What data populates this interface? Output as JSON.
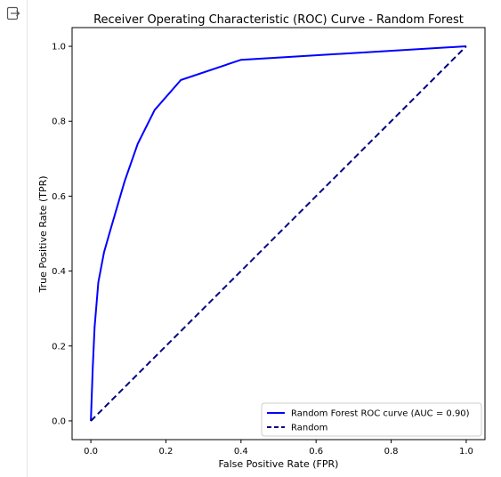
{
  "cell": {
    "output_icon": "output-expand-icon"
  },
  "chart_data": {
    "type": "line",
    "title": "Receiver Operating Characteristic (ROC) Curve - Random Forest",
    "xlabel": "False Positive Rate (FPR)",
    "ylabel": "True Positive Rate (TPR)",
    "xlim": [
      -0.05,
      1.05
    ],
    "ylim": [
      -0.05,
      1.05
    ],
    "xticks": [
      0.0,
      0.2,
      0.4,
      0.6,
      0.8,
      1.0
    ],
    "yticks": [
      0.0,
      0.2,
      0.4,
      0.6,
      0.8,
      1.0
    ],
    "xtick_labels": [
      "0.0",
      "0.2",
      "0.4",
      "0.6",
      "0.8",
      "1.0"
    ],
    "ytick_labels": [
      "0.0",
      "0.2",
      "0.4",
      "0.6",
      "0.8",
      "1.0"
    ],
    "grid": false,
    "legend_position": "lower-right",
    "series": [
      {
        "name": "Random Forest ROC curve (AUC = 0.90)",
        "color": "#0000ff",
        "style": "solid",
        "x": [
          0.0,
          0.005,
          0.01,
          0.02,
          0.035,
          0.055,
          0.09,
          0.125,
          0.17,
          0.24,
          0.4,
          1.0
        ],
        "y": [
          0.0,
          0.14,
          0.25,
          0.37,
          0.45,
          0.52,
          0.64,
          0.74,
          0.83,
          0.91,
          0.964,
          1.0
        ]
      },
      {
        "name": "Random",
        "color": "#000080",
        "style": "dashed",
        "x": [
          0.0,
          1.0
        ],
        "y": [
          0.0,
          1.0
        ]
      }
    ]
  }
}
